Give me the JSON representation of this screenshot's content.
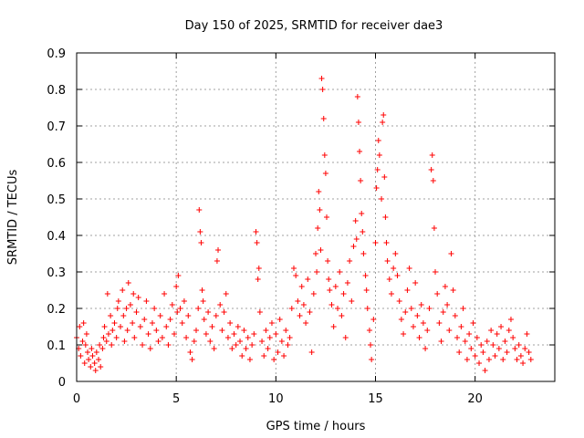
{
  "chart_data": {
    "type": "scatter",
    "title": "Day 150 of 2025, SRMTID for receiver dae3",
    "xlabel": "GPS time / hours",
    "ylabel": "SRMTID / TECUs",
    "xlim": [
      0,
      24
    ],
    "ylim": [
      0,
      0.9
    ],
    "xticks": [
      0,
      5,
      10,
      15,
      20
    ],
    "xtick_labels": [
      "0",
      "5",
      "10",
      "15",
      "20"
    ],
    "yticks": [
      0,
      0.1,
      0.2,
      0.3,
      0.4,
      0.5,
      0.6,
      0.7,
      0.8,
      0.9
    ],
    "ytick_labels": [
      "0",
      "0.1",
      "0.2",
      "0.3",
      "0.4",
      "0.5",
      "0.6",
      "0.7",
      "0.8",
      "0.9"
    ],
    "grid": true,
    "marker": "+",
    "series": [
      {
        "name": "SRMTID",
        "color": "#ff0000",
        "points": [
          [
            0.0,
            0.12
          ],
          [
            0.1,
            0.09
          ],
          [
            0.15,
            0.15
          ],
          [
            0.2,
            0.07
          ],
          [
            0.3,
            0.11
          ],
          [
            0.35,
            0.16
          ],
          [
            0.4,
            0.05
          ],
          [
            0.45,
            0.1
          ],
          [
            0.5,
            0.13
          ],
          [
            0.55,
            0.08
          ],
          [
            0.6,
            0.06
          ],
          [
            0.7,
            0.04
          ],
          [
            0.75,
            0.09
          ],
          [
            0.8,
            0.07
          ],
          [
            0.9,
            0.05
          ],
          [
            0.95,
            0.03
          ],
          [
            1.0,
            0.08
          ],
          [
            1.1,
            0.06
          ],
          [
            1.15,
            0.1
          ],
          [
            1.2,
            0.04
          ],
          [
            1.3,
            0.09
          ],
          [
            1.35,
            0.12
          ],
          [
            1.4,
            0.15
          ],
          [
            1.5,
            0.11
          ],
          [
            1.55,
            0.24
          ],
          [
            1.6,
            0.13
          ],
          [
            1.7,
            0.18
          ],
          [
            1.75,
            0.1
          ],
          [
            1.8,
            0.14
          ],
          [
            1.9,
            0.16
          ],
          [
            2.0,
            0.12
          ],
          [
            2.05,
            0.2
          ],
          [
            2.1,
            0.22
          ],
          [
            2.2,
            0.15
          ],
          [
            2.3,
            0.25
          ],
          [
            2.35,
            0.18
          ],
          [
            2.4,
            0.11
          ],
          [
            2.5,
            0.2
          ],
          [
            2.55,
            0.14
          ],
          [
            2.6,
            0.27
          ],
          [
            2.7,
            0.21
          ],
          [
            2.8,
            0.16
          ],
          [
            2.85,
            0.24
          ],
          [
            2.9,
            0.12
          ],
          [
            3.0,
            0.19
          ],
          [
            3.1,
            0.23
          ],
          [
            3.2,
            0.15
          ],
          [
            3.3,
            0.1
          ],
          [
            3.4,
            0.17
          ],
          [
            3.5,
            0.22
          ],
          [
            3.6,
            0.13
          ],
          [
            3.7,
            0.09
          ],
          [
            3.8,
            0.16
          ],
          [
            3.9,
            0.2
          ],
          [
            4.0,
            0.14
          ],
          [
            4.1,
            0.11
          ],
          [
            4.2,
            0.18
          ],
          [
            4.3,
            0.12
          ],
          [
            4.4,
            0.24
          ],
          [
            4.5,
            0.15
          ],
          [
            4.6,
            0.1
          ],
          [
            4.7,
            0.17
          ],
          [
            4.8,
            0.21
          ],
          [
            4.9,
            0.13
          ],
          [
            5.0,
            0.26
          ],
          [
            5.05,
            0.19
          ],
          [
            5.1,
            0.29
          ],
          [
            5.2,
            0.2
          ],
          [
            5.3,
            0.16
          ],
          [
            5.4,
            0.22
          ],
          [
            5.5,
            0.12
          ],
          [
            5.6,
            0.18
          ],
          [
            5.7,
            0.08
          ],
          [
            5.8,
            0.06
          ],
          [
            5.9,
            0.11
          ],
          [
            6.0,
            0.14
          ],
          [
            6.1,
            0.2
          ],
          [
            6.15,
            0.47
          ],
          [
            6.2,
            0.41
          ],
          [
            6.25,
            0.38
          ],
          [
            6.3,
            0.25
          ],
          [
            6.35,
            0.22
          ],
          [
            6.4,
            0.17
          ],
          [
            6.5,
            0.13
          ],
          [
            6.6,
            0.19
          ],
          [
            6.7,
            0.11
          ],
          [
            6.8,
            0.15
          ],
          [
            6.9,
            0.09
          ],
          [
            7.0,
            0.18
          ],
          [
            7.05,
            0.33
          ],
          [
            7.1,
            0.36
          ],
          [
            7.2,
            0.21
          ],
          [
            7.3,
            0.14
          ],
          [
            7.4,
            0.19
          ],
          [
            7.5,
            0.24
          ],
          [
            7.6,
            0.12
          ],
          [
            7.7,
            0.16
          ],
          [
            7.8,
            0.09
          ],
          [
            7.9,
            0.13
          ],
          [
            8.0,
            0.1
          ],
          [
            8.1,
            0.15
          ],
          [
            8.2,
            0.11
          ],
          [
            8.3,
            0.07
          ],
          [
            8.4,
            0.14
          ],
          [
            8.5,
            0.09
          ],
          [
            8.6,
            0.12
          ],
          [
            8.7,
            0.06
          ],
          [
            8.8,
            0.1
          ],
          [
            8.9,
            0.13
          ],
          [
            9.0,
            0.41
          ],
          [
            9.05,
            0.38
          ],
          [
            9.1,
            0.28
          ],
          [
            9.15,
            0.31
          ],
          [
            9.2,
            0.19
          ],
          [
            9.3,
            0.11
          ],
          [
            9.4,
            0.07
          ],
          [
            9.5,
            0.14
          ],
          [
            9.6,
            0.09
          ],
          [
            9.7,
            0.12
          ],
          [
            9.8,
            0.16
          ],
          [
            9.9,
            0.06
          ],
          [
            10.0,
            0.13
          ],
          [
            10.1,
            0.08
          ],
          [
            10.2,
            0.17
          ],
          [
            10.3,
            0.11
          ],
          [
            10.4,
            0.07
          ],
          [
            10.5,
            0.14
          ],
          [
            10.6,
            0.1
          ],
          [
            10.7,
            0.12
          ],
          [
            10.8,
            0.2
          ],
          [
            10.9,
            0.31
          ],
          [
            11.0,
            0.29
          ],
          [
            11.1,
            0.22
          ],
          [
            11.2,
            0.18
          ],
          [
            11.3,
            0.26
          ],
          [
            11.4,
            0.21
          ],
          [
            11.5,
            0.16
          ],
          [
            11.6,
            0.28
          ],
          [
            11.7,
            0.19
          ],
          [
            11.8,
            0.08
          ],
          [
            11.9,
            0.24
          ],
          [
            12.0,
            0.35
          ],
          [
            12.05,
            0.3
          ],
          [
            12.1,
            0.42
          ],
          [
            12.15,
            0.52
          ],
          [
            12.2,
            0.47
          ],
          [
            12.25,
            0.36
          ],
          [
            12.3,
            0.83
          ],
          [
            12.35,
            0.8
          ],
          [
            12.4,
            0.72
          ],
          [
            12.45,
            0.62
          ],
          [
            12.5,
            0.57
          ],
          [
            12.55,
            0.45
          ],
          [
            12.6,
            0.33
          ],
          [
            12.65,
            0.28
          ],
          [
            12.7,
            0.25
          ],
          [
            12.8,
            0.21
          ],
          [
            12.9,
            0.15
          ],
          [
            13.0,
            0.26
          ],
          [
            13.1,
            0.2
          ],
          [
            13.2,
            0.3
          ],
          [
            13.3,
            0.18
          ],
          [
            13.4,
            0.24
          ],
          [
            13.5,
            0.12
          ],
          [
            13.6,
            0.27
          ],
          [
            13.7,
            0.33
          ],
          [
            13.8,
            0.22
          ],
          [
            13.9,
            0.37
          ],
          [
            14.0,
            0.44
          ],
          [
            14.05,
            0.39
          ],
          [
            14.1,
            0.78
          ],
          [
            14.15,
            0.71
          ],
          [
            14.2,
            0.63
          ],
          [
            14.25,
            0.55
          ],
          [
            14.3,
            0.46
          ],
          [
            14.35,
            0.41
          ],
          [
            14.4,
            0.35
          ],
          [
            14.5,
            0.29
          ],
          [
            14.55,
            0.25
          ],
          [
            14.6,
            0.2
          ],
          [
            14.7,
            0.14
          ],
          [
            14.75,
            0.1
          ],
          [
            14.8,
            0.06
          ],
          [
            14.9,
            0.17
          ],
          [
            15.0,
            0.38
          ],
          [
            15.05,
            0.53
          ],
          [
            15.1,
            0.58
          ],
          [
            15.15,
            0.66
          ],
          [
            15.2,
            0.62
          ],
          [
            15.3,
            0.5
          ],
          [
            15.35,
            0.71
          ],
          [
            15.4,
            0.73
          ],
          [
            15.45,
            0.56
          ],
          [
            15.5,
            0.45
          ],
          [
            15.55,
            0.38
          ],
          [
            15.6,
            0.33
          ],
          [
            15.7,
            0.28
          ],
          [
            15.8,
            0.24
          ],
          [
            15.9,
            0.31
          ],
          [
            16.0,
            0.35
          ],
          [
            16.1,
            0.29
          ],
          [
            16.2,
            0.22
          ],
          [
            16.3,
            0.17
          ],
          [
            16.4,
            0.13
          ],
          [
            16.5,
            0.19
          ],
          [
            16.6,
            0.25
          ],
          [
            16.7,
            0.31
          ],
          [
            16.8,
            0.2
          ],
          [
            16.9,
            0.15
          ],
          [
            17.0,
            0.27
          ],
          [
            17.1,
            0.18
          ],
          [
            17.2,
            0.12
          ],
          [
            17.3,
            0.21
          ],
          [
            17.4,
            0.16
          ],
          [
            17.5,
            0.09
          ],
          [
            17.6,
            0.14
          ],
          [
            17.7,
            0.2
          ],
          [
            17.8,
            0.58
          ],
          [
            17.85,
            0.62
          ],
          [
            17.9,
            0.55
          ],
          [
            17.95,
            0.42
          ],
          [
            18.0,
            0.3
          ],
          [
            18.1,
            0.24
          ],
          [
            18.2,
            0.16
          ],
          [
            18.3,
            0.11
          ],
          [
            18.4,
            0.19
          ],
          [
            18.5,
            0.26
          ],
          [
            18.6,
            0.21
          ],
          [
            18.7,
            0.14
          ],
          [
            18.8,
            0.35
          ],
          [
            18.9,
            0.25
          ],
          [
            19.0,
            0.18
          ],
          [
            19.1,
            0.12
          ],
          [
            19.2,
            0.08
          ],
          [
            19.3,
            0.15
          ],
          [
            19.4,
            0.2
          ],
          [
            19.5,
            0.11
          ],
          [
            19.6,
            0.06
          ],
          [
            19.7,
            0.13
          ],
          [
            19.8,
            0.09
          ],
          [
            19.9,
            0.16
          ],
          [
            20.0,
            0.07
          ],
          [
            20.1,
            0.12
          ],
          [
            20.2,
            0.05
          ],
          [
            20.3,
            0.1
          ],
          [
            20.4,
            0.08
          ],
          [
            20.5,
            0.03
          ],
          [
            20.6,
            0.11
          ],
          [
            20.7,
            0.06
          ],
          [
            20.8,
            0.14
          ],
          [
            20.9,
            0.1
          ],
          [
            21.0,
            0.07
          ],
          [
            21.1,
            0.13
          ],
          [
            21.2,
            0.09
          ],
          [
            21.3,
            0.15
          ],
          [
            21.4,
            0.06
          ],
          [
            21.5,
            0.11
          ],
          [
            21.6,
            0.08
          ],
          [
            21.7,
            0.14
          ],
          [
            21.8,
            0.17
          ],
          [
            21.9,
            0.12
          ],
          [
            22.0,
            0.09
          ],
          [
            22.1,
            0.06
          ],
          [
            22.2,
            0.1
          ],
          [
            22.3,
            0.07
          ],
          [
            22.4,
            0.05
          ],
          [
            22.5,
            0.09
          ],
          [
            22.6,
            0.13
          ],
          [
            22.7,
            0.08
          ],
          [
            22.8,
            0.06
          ]
        ]
      }
    ]
  }
}
